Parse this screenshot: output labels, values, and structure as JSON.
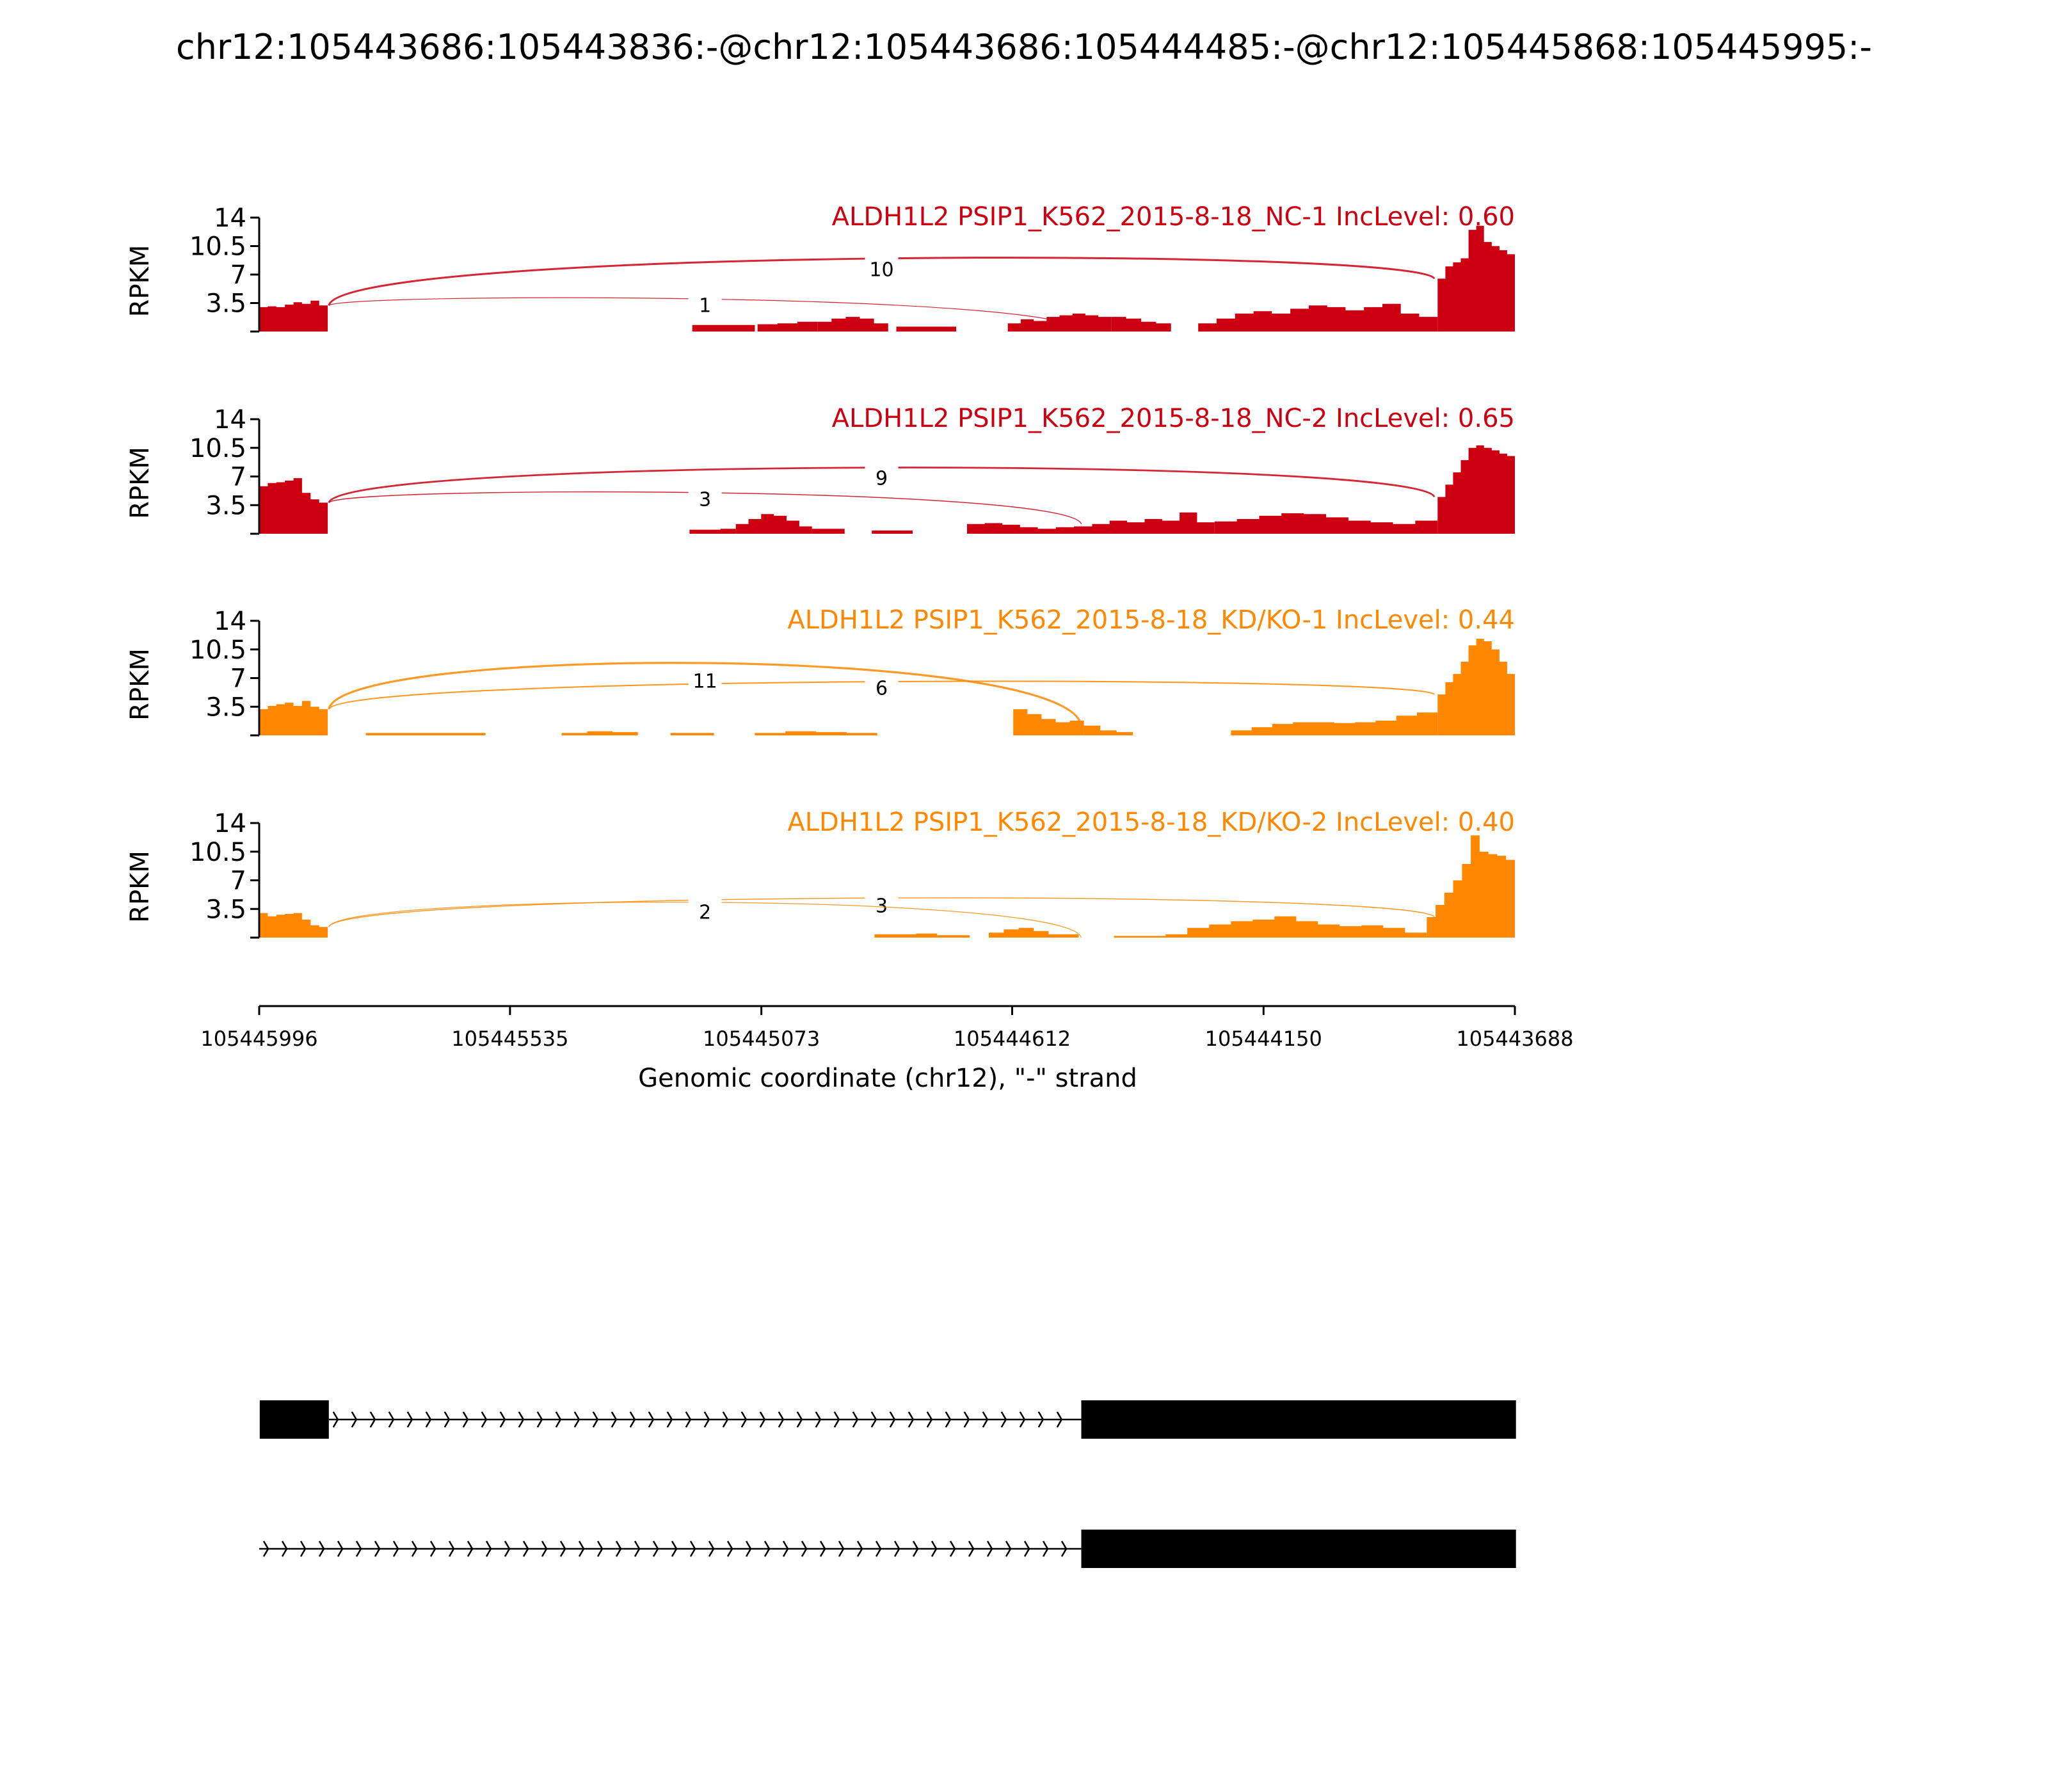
{
  "figure_title": "chr12:105443686:105443836:-@chr12:105443686:105444485:-@chr12:105445868:105445995:-",
  "chart_data": {
    "type": "area",
    "xlabel": "Genomic coordinate (chr12), \"-\" strand",
    "ylabel": "RPKM",
    "x_reversed": true,
    "xlim": [
      105445996,
      105443688
    ],
    "x_ticks": [
      "105445996",
      "105445535",
      "105445073",
      "105444612",
      "105444150",
      "105443688"
    ],
    "ylim": [
      0,
      14
    ],
    "y_ticks": [
      "3.5",
      "7",
      "10.5",
      "14"
    ],
    "colors": {
      "NC": "#cc0011",
      "KD": "#ff8800"
    },
    "tracks": [
      {
        "name": "ALDH1L2 PSIP1_K562_2015-8-18_NC-1 IncLevel: 0.60",
        "color": "#cc0011",
        "coverage": [
          {
            "start": 105445996,
            "end": 105445870,
            "values": [
              3.0,
              3.1,
              3.0,
              3.3,
              3.6,
              3.4,
              3.8,
              3.2
            ]
          },
          {
            "start": 105445200,
            "end": 105445085,
            "values": [
              0.8,
              0.8,
              0.8
            ]
          },
          {
            "start": 105445080,
            "end": 105444970,
            "values": [
              0.9,
              1.0,
              1.2
            ]
          },
          {
            "start": 105444970,
            "end": 105444840,
            "values": [
              1.2,
              1.6,
              1.8,
              1.6,
              1.0
            ]
          },
          {
            "start": 105444825,
            "end": 105444715,
            "values": [
              0.6,
              0.6,
              0.6
            ]
          },
          {
            "start": 105444620,
            "end": 105444430,
            "values": [
              1.0,
              1.5,
              1.3,
              1.8,
              2.0,
              2.2,
              2.0,
              1.8
            ]
          },
          {
            "start": 105444430,
            "end": 105444320,
            "values": [
              1.8,
              1.6,
              1.2,
              1.0
            ]
          },
          {
            "start": 105444270,
            "end": 105443830,
            "values": [
              1.0,
              1.6,
              2.2,
              2.5,
              2.2,
              2.8,
              3.2,
              3.0,
              2.6,
              3.0,
              3.4,
              2.2,
              1.8
            ]
          },
          {
            "start": 105443830,
            "end": 105443688,
            "values": [
              6.5,
              8.0,
              8.5,
              9.0,
              12.5,
              13.0,
              11.0,
              10.5,
              10.0,
              9.5
            ]
          }
        ],
        "junctions": [
          {
            "from": 105445868,
            "to": 105443836,
            "reads": 10
          },
          {
            "from": 105445868,
            "to": 105444485,
            "reads": 1
          }
        ]
      },
      {
        "name": "ALDH1L2 PSIP1_K562_2015-8-18_NC-2 IncLevel: 0.65",
        "color": "#cc0011",
        "coverage": [
          {
            "start": 105445996,
            "end": 105445870,
            "values": [
              5.8,
              6.2,
              6.3,
              6.5,
              6.8,
              5.0,
              4.2,
              3.8
            ]
          },
          {
            "start": 105445205,
            "end": 105445120,
            "values": [
              0.5,
              0.5,
              0.6
            ]
          },
          {
            "start": 105445120,
            "end": 105444980,
            "values": [
              1.2,
              1.8,
              2.4,
              2.2,
              1.6,
              0.9
            ]
          },
          {
            "start": 105444980,
            "end": 105444920,
            "values": [
              0.6,
              0.6
            ]
          },
          {
            "start": 105444870,
            "end": 105444795,
            "values": [
              0.4,
              0.4
            ]
          },
          {
            "start": 105444695,
            "end": 105444565,
            "values": [
              1.2,
              1.3,
              1.1,
              0.8
            ]
          },
          {
            "start": 105444565,
            "end": 105444465,
            "values": [
              0.6,
              0.8,
              0.9
            ]
          },
          {
            "start": 105444465,
            "end": 105444240,
            "values": [
              1.2,
              1.6,
              1.4,
              1.8,
              1.6,
              2.6,
              1.4
            ]
          },
          {
            "start": 105444240,
            "end": 105443830,
            "values": [
              1.5,
              1.8,
              2.2,
              2.5,
              2.4,
              2.0,
              1.6,
              1.4,
              1.2,
              1.6
            ]
          },
          {
            "start": 105443830,
            "end": 105443688,
            "values": [
              4.5,
              6.0,
              7.5,
              9.0,
              10.5,
              10.8,
              10.5,
              10.2,
              9.8,
              9.5
            ]
          }
        ],
        "junctions": [
          {
            "from": 105445868,
            "to": 105443836,
            "reads": 9
          },
          {
            "from": 105445868,
            "to": 105444485,
            "reads": 3
          }
        ]
      },
      {
        "name": "ALDH1L2 PSIP1_K562_2015-8-18_KD/KO-1 IncLevel: 0.44",
        "color": "#ff8800",
        "coverage": [
          {
            "start": 105445996,
            "end": 105445870,
            "values": [
              3.2,
              3.6,
              3.8,
              4.0,
              3.6,
              4.2,
              3.5,
              3.2
            ]
          },
          {
            "start": 105445800,
            "end": 105445580,
            "values": [
              0.3,
              0.3,
              0.3,
              0.3
            ]
          },
          {
            "start": 105445440,
            "end": 105445300,
            "values": [
              0.3,
              0.5,
              0.4
            ]
          },
          {
            "start": 105445240,
            "end": 105445160,
            "values": [
              0.3,
              0.3
            ]
          },
          {
            "start": 105445085,
            "end": 105444860,
            "values": [
              0.3,
              0.5,
              0.4,
              0.3
            ]
          },
          {
            "start": 105444610,
            "end": 105444480,
            "values": [
              3.2,
              2.6,
              2.0,
              1.6,
              1.8
            ]
          },
          {
            "start": 105444480,
            "end": 105444390,
            "values": [
              1.2,
              0.6,
              0.4
            ]
          },
          {
            "start": 105444210,
            "end": 105443830,
            "values": [
              0.6,
              1.0,
              1.4,
              1.6,
              1.6,
              1.5,
              1.6,
              1.8,
              2.4,
              2.8
            ]
          },
          {
            "start": 105443830,
            "end": 105443688,
            "values": [
              5.0,
              6.5,
              7.5,
              9.0,
              11.0,
              11.8,
              11.5,
              10.5,
              9.0,
              7.5
            ]
          }
        ],
        "junctions": [
          {
            "from": 105445868,
            "to": 105443836,
            "reads": 6
          },
          {
            "from": 105445868,
            "to": 105444485,
            "reads": 11
          }
        ]
      },
      {
        "name": "ALDH1L2 PSIP1_K562_2015-8-18_KD/KO-2 IncLevel: 0.40",
        "color": "#ff8800",
        "coverage": [
          {
            "start": 105445996,
            "end": 105445870,
            "values": [
              3.0,
              2.6,
              2.8,
              2.9,
              3.0,
              2.2,
              1.5,
              1.3
            ]
          },
          {
            "start": 105444865,
            "end": 105444750,
            "values": [
              0.4,
              0.4,
              0.5
            ]
          },
          {
            "start": 105444750,
            "end": 105444690,
            "values": [
              0.3,
              0.3
            ]
          },
          {
            "start": 105444655,
            "end": 105444545,
            "values": [
              0.6,
              1.0,
              1.2,
              0.8
            ]
          },
          {
            "start": 105444545,
            "end": 105444490,
            "values": [
              0.4,
              0.4
            ]
          },
          {
            "start": 105444425,
            "end": 105444330,
            "values": [
              0.2,
              0.2
            ]
          },
          {
            "start": 105444330,
            "end": 105443850,
            "values": [
              0.4,
              1.2,
              1.6,
              2.0,
              2.2,
              2.6,
              2.0,
              1.6,
              1.4,
              1.5,
              1.2,
              0.6
            ]
          },
          {
            "start": 105443850,
            "end": 105443688,
            "values": [
              2.5,
              4.0,
              5.5,
              7.0,
              9.0,
              12.5,
              10.5,
              10.2,
              10.0,
              9.5
            ]
          }
        ],
        "junctions": [
          {
            "from": 105445868,
            "to": 105443836,
            "reads": 3
          },
          {
            "from": 105445868,
            "to": 105444485,
            "reads": 2
          }
        ]
      }
    ],
    "isoforms": [
      {
        "exons": [
          {
            "start": 105445995,
            "end": 105445868
          },
          {
            "start": 105444485,
            "end": 105443686
          }
        ],
        "intron": {
          "start": 105445868,
          "end": 105444485
        }
      },
      {
        "exons": [
          {
            "start": 105444485,
            "end": 105443686
          }
        ],
        "intron": {
          "start": 105445996,
          "end": 105444485
        }
      }
    ]
  }
}
